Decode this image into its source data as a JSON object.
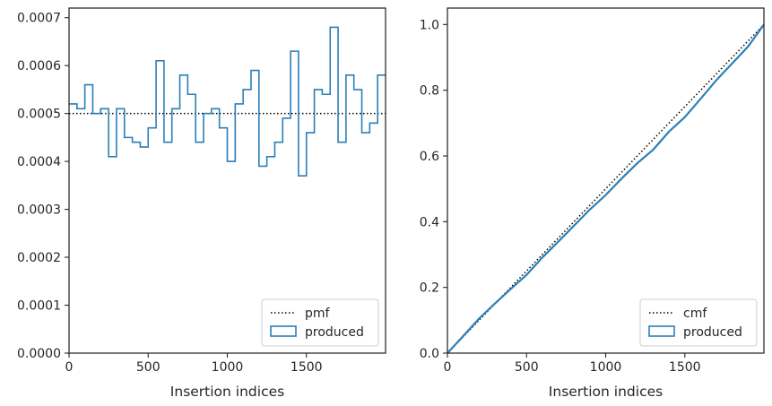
{
  "colors": {
    "series": "#2c7fb8",
    "reference": "#000000",
    "axes": "#262626",
    "legend_border": "#cccccc"
  },
  "chart_data": [
    {
      "type": "histogram-step",
      "xlabel": "Insertion indices",
      "ylabel": "",
      "xlim": [
        0,
        2000
      ],
      "ylim": [
        0,
        0.00072
      ],
      "xticks": [
        "0",
        "500",
        "1000",
        "1500"
      ],
      "yticks": [
        "0.0000",
        "0.0001",
        "0.0002",
        "0.0003",
        "0.0004",
        "0.0005",
        "0.0006",
        "0.0007"
      ],
      "legend": {
        "placement": "lower-right",
        "entries": [
          "pmf",
          "produced"
        ]
      },
      "reference": {
        "name": "pmf",
        "style": "dotted",
        "y": 0.0005
      },
      "bin_width": 50,
      "values": [
        0.00052,
        0.00051,
        0.00056,
        0.0005,
        0.00051,
        0.00041,
        0.00051,
        0.00045,
        0.00044,
        0.00043,
        0.00047,
        0.00061,
        0.00044,
        0.00051,
        0.00058,
        0.00054,
        0.00044,
        0.0005,
        0.00051,
        0.00047,
        0.0004,
        0.00052,
        0.00055,
        0.00059,
        0.00039,
        0.00041,
        0.00044,
        0.00049,
        0.00063,
        0.00037,
        0.00046,
        0.00055,
        0.00054,
        0.00068,
        0.00044,
        0.00058,
        0.00055,
        0.00046,
        0.00048,
        0.00058
      ]
    },
    {
      "type": "line",
      "xlabel": "Insertion indices",
      "ylabel": "",
      "xlim": [
        0,
        2000
      ],
      "ylim": [
        0,
        1.05
      ],
      "xticks": [
        "0",
        "500",
        "1000",
        "1500"
      ],
      "yticks": [
        "0.0",
        "0.2",
        "0.4",
        "0.6",
        "0.8",
        "1.0"
      ],
      "legend": {
        "placement": "lower-right",
        "entries": [
          "cmf",
          "produced"
        ]
      },
      "reference": {
        "name": "cmf",
        "style": "dotted",
        "x": [
          0,
          2000
        ],
        "y": [
          0,
          1
        ]
      },
      "series": [
        {
          "name": "produced",
          "x": [
            0,
            100,
            200,
            300,
            400,
            500,
            600,
            700,
            800,
            900,
            1000,
            1100,
            1200,
            1300,
            1400,
            1500,
            1600,
            1700,
            1800,
            1900,
            2000
          ],
          "y": [
            0,
            0.052,
            0.105,
            0.151,
            0.195,
            0.238,
            0.291,
            0.339,
            0.388,
            0.437,
            0.481,
            0.531,
            0.578,
            0.619,
            0.674,
            0.718,
            0.774,
            0.831,
            0.882,
            0.933,
            1.0
          ]
        }
      ]
    }
  ]
}
